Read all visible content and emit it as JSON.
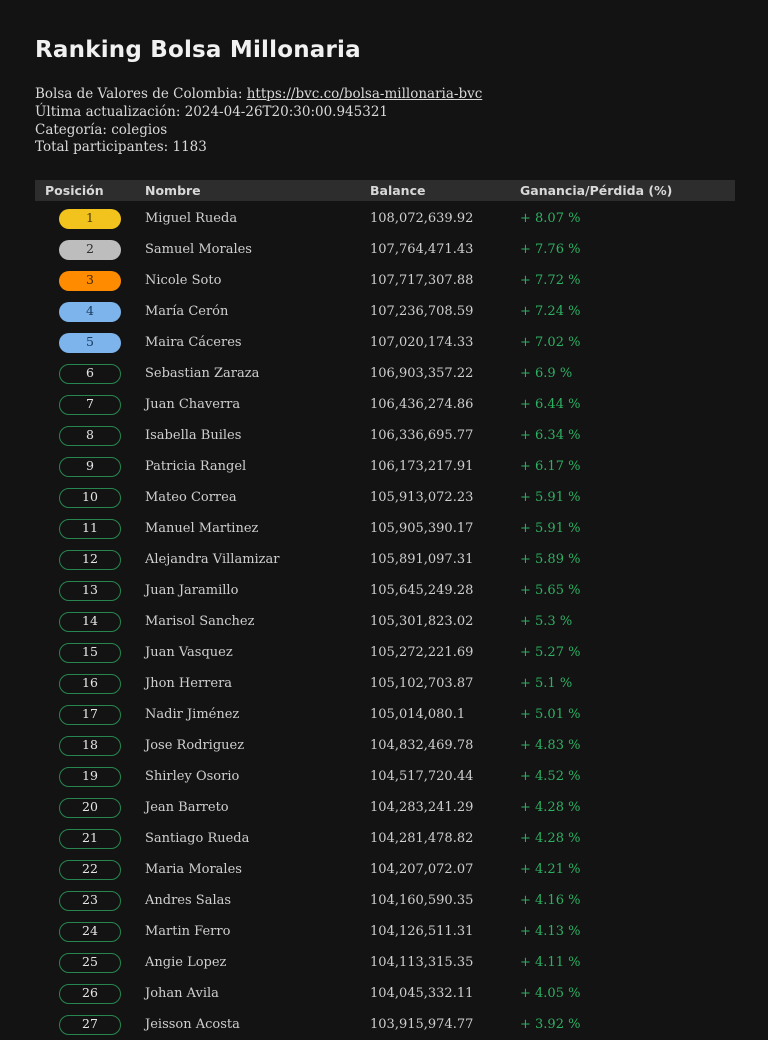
{
  "page": {
    "title": "Ranking Bolsa Millonaria",
    "meta": {
      "exchange_label": "Bolsa de Valores de Colombia: ",
      "exchange_link": "https://bvc.co/bolsa-millonaria-bvc",
      "updated": "Última actualización: 2024-04-26T20:30:00.945321",
      "category": "Categoría: colegios",
      "participants": "Total participantes: 1183"
    }
  },
  "colors": {
    "background": "#131313",
    "header_bg": "#2d2d2d",
    "gain_green": "#2eb062",
    "badge_outline_green": "#27864f",
    "badge_gold": "#f2c21d",
    "badge_silver": "#bdbdbd",
    "badge_orange": "#ff8c00",
    "badge_blue": "#7db4ec"
  },
  "table": {
    "headers": [
      "Posición",
      "Nombre",
      "Balance",
      "Ganancia/Pérdida (%)"
    ],
    "rows": [
      {
        "position": 1,
        "name": "Miguel Rueda",
        "balance": "108,072,639.92",
        "gain": "+ 8.07 %"
      },
      {
        "position": 2,
        "name": "Samuel Morales",
        "balance": "107,764,471.43",
        "gain": "+ 7.76 %"
      },
      {
        "position": 3,
        "name": "Nicole Soto",
        "balance": "107,717,307.88",
        "gain": "+ 7.72 %"
      },
      {
        "position": 4,
        "name": "María Cerón",
        "balance": "107,236,708.59",
        "gain": "+ 7.24 %"
      },
      {
        "position": 5,
        "name": "Maira Cáceres",
        "balance": "107,020,174.33",
        "gain": "+ 7.02 %"
      },
      {
        "position": 6,
        "name": "Sebastian Zaraza",
        "balance": "106,903,357.22",
        "gain": "+ 6.9 %"
      },
      {
        "position": 7,
        "name": "Juan Chaverra",
        "balance": "106,436,274.86",
        "gain": "+ 6.44 %"
      },
      {
        "position": 8,
        "name": "Isabella Builes",
        "balance": "106,336,695.77",
        "gain": "+ 6.34 %"
      },
      {
        "position": 9,
        "name": "Patricia Rangel",
        "balance": "106,173,217.91",
        "gain": "+ 6.17 %"
      },
      {
        "position": 10,
        "name": "Mateo Correa",
        "balance": "105,913,072.23",
        "gain": "+ 5.91 %"
      },
      {
        "position": 11,
        "name": "Manuel Martinez",
        "balance": "105,905,390.17",
        "gain": "+ 5.91 %"
      },
      {
        "position": 12,
        "name": "Alejandra Villamizar",
        "balance": "105,891,097.31",
        "gain": "+ 5.89 %"
      },
      {
        "position": 13,
        "name": "Juan Jaramillo",
        "balance": "105,645,249.28",
        "gain": "+ 5.65 %"
      },
      {
        "position": 14,
        "name": "Marisol Sanchez",
        "balance": "105,301,823.02",
        "gain": "+ 5.3 %"
      },
      {
        "position": 15,
        "name": "Juan Vasquez",
        "balance": "105,272,221.69",
        "gain": "+ 5.27 %"
      },
      {
        "position": 16,
        "name": "Jhon Herrera",
        "balance": "105,102,703.87",
        "gain": "+ 5.1 %"
      },
      {
        "position": 17,
        "name": "Nadir Jiménez",
        "balance": "105,014,080.1",
        "gain": "+ 5.01 %"
      },
      {
        "position": 18,
        "name": "Jose Rodriguez",
        "balance": "104,832,469.78",
        "gain": "+ 4.83 %"
      },
      {
        "position": 19,
        "name": "Shirley Osorio",
        "balance": "104,517,720.44",
        "gain": "+ 4.52 %"
      },
      {
        "position": 20,
        "name": "Jean Barreto",
        "balance": "104,283,241.29",
        "gain": "+ 4.28 %"
      },
      {
        "position": 21,
        "name": "Santiago Rueda",
        "balance": "104,281,478.82",
        "gain": "+ 4.28 %"
      },
      {
        "position": 22,
        "name": "Maria Morales",
        "balance": "104,207,072.07",
        "gain": "+ 4.21 %"
      },
      {
        "position": 23,
        "name": "Andres Salas",
        "balance": "104,160,590.35",
        "gain": "+ 4.16 %"
      },
      {
        "position": 24,
        "name": "Martin Ferro",
        "balance": "104,126,511.31",
        "gain": "+ 4.13 %"
      },
      {
        "position": 25,
        "name": "Angie Lopez",
        "balance": "104,113,315.35",
        "gain": "+ 4.11 %"
      },
      {
        "position": 26,
        "name": "Johan Avila",
        "balance": "104,045,332.11",
        "gain": "+ 4.05 %"
      },
      {
        "position": 27,
        "name": "Jeisson Acosta",
        "balance": "103,915,974.77",
        "gain": "+ 3.92 %"
      }
    ]
  }
}
